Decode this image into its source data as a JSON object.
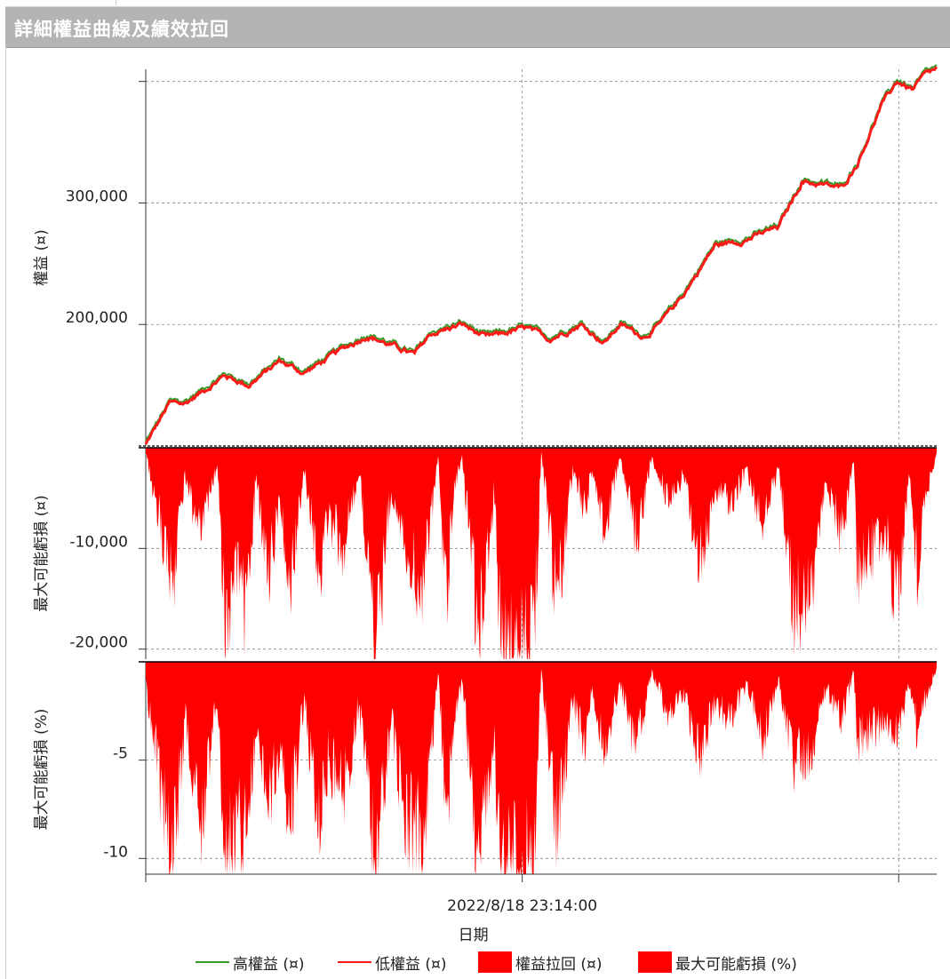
{
  "window": {
    "title": "詳細權益曲線及績效拉回"
  },
  "colors": {
    "high_equity": "#3a9a2a",
    "low_equity": "#ff1a1a",
    "drawdown": "#ff0000",
    "grid": "#999999"
  },
  "chart_data": [
    {
      "type": "line",
      "panel": "equity",
      "ylabel": "權益 (¤)",
      "yticks": [
        200000,
        300000
      ],
      "ytick_labels": [
        "200,000",
        "300,000"
      ],
      "ylim": [
        100000,
        410000
      ],
      "series": [
        {
          "name": "高權益 (¤)",
          "color": "#3a9a2a"
        },
        {
          "name": "低權益 (¤)",
          "color": "#ff1a1a"
        }
      ],
      "x": [
        0,
        0.03,
        0.05,
        0.1,
        0.13,
        0.17,
        0.2,
        0.25,
        0.28,
        0.34,
        0.36,
        0.4,
        0.43,
        0.48,
        0.51,
        0.55,
        0.58,
        0.6,
        0.63,
        0.65,
        0.68,
        0.72,
        0.76,
        0.8,
        0.83,
        0.88,
        0.9,
        0.93,
        0.95,
        0.97,
        0.985,
        1.0
      ],
      "values": [
        101000,
        135000,
        135000,
        158000,
        150000,
        170000,
        160000,
        180000,
        191000,
        175000,
        192000,
        200000,
        189000,
        197000,
        188000,
        200000,
        185000,
        200000,
        190000,
        200000,
        225000,
        265000,
        270000,
        280000,
        318000,
        312000,
        333000,
        380000,
        400000,
        393000,
        405000,
        410000
      ]
    },
    {
      "type": "area",
      "panel": "drawdown_abs",
      "ylabel": "最大可能虧損 (¤)",
      "yticks": [
        -10000,
        -20000
      ],
      "ytick_labels": [
        "-10,000",
        "-20,000"
      ],
      "ylim": [
        -21000,
        0
      ],
      "series": [
        {
          "name": "權益拉回 (¤)",
          "color": "#ff0000"
        }
      ],
      "x": [
        0,
        0.02,
        0.035,
        0.05,
        0.07,
        0.09,
        0.1,
        0.12,
        0.125,
        0.14,
        0.155,
        0.17,
        0.18,
        0.2,
        0.22,
        0.23,
        0.25,
        0.27,
        0.29,
        0.31,
        0.33,
        0.35,
        0.37,
        0.38,
        0.39,
        0.4,
        0.42,
        0.44,
        0.45,
        0.47,
        0.49,
        0.5,
        0.52,
        0.54,
        0.555,
        0.565,
        0.58,
        0.6,
        0.62,
        0.64,
        0.66,
        0.68,
        0.7,
        0.72,
        0.74,
        0.76,
        0.78,
        0.8,
        0.82,
        0.84,
        0.86,
        0.88,
        0.895,
        0.9,
        0.92,
        0.935,
        0.95,
        0.965,
        0.975,
        0.985,
        1.0
      ],
      "values": [
        -500,
        -8000,
        -13500,
        -3000,
        -9000,
        -1500,
        -16500,
        -12000,
        -16000,
        -3000,
        -13000,
        -5000,
        -15000,
        -2000,
        -12000,
        -7000,
        -10000,
        -2000,
        -21000,
        -4000,
        -10000,
        -14000,
        -500,
        -16000,
        -4000,
        -1000,
        -18000,
        -5000,
        -20000,
        -19000,
        -21000,
        -500,
        -16000,
        -2000,
        -6000,
        -2000,
        -8000,
        -1000,
        -9000,
        -1000,
        -5000,
        -3000,
        -12000,
        -4000,
        -6000,
        -2000,
        -8000,
        -2000,
        -16000,
        -15000,
        -3000,
        -9000,
        -1000,
        -12000,
        -10000,
        -8000,
        -16000,
        -2000,
        -12000,
        -5000,
        -500
      ]
    },
    {
      "type": "area",
      "panel": "drawdown_pct",
      "ylabel": "最大可能虧損 (%)",
      "yticks": [
        -5,
        -10
      ],
      "ytick_labels": [
        "-5",
        "-10"
      ],
      "ylim": [
        -10.8,
        0
      ],
      "series": [
        {
          "name": "最大可能虧損 (%)",
          "color": "#ff0000"
        }
      ],
      "x": [
        0,
        0.02,
        0.035,
        0.05,
        0.07,
        0.09,
        0.1,
        0.12,
        0.125,
        0.14,
        0.155,
        0.17,
        0.18,
        0.2,
        0.22,
        0.23,
        0.25,
        0.27,
        0.29,
        0.31,
        0.33,
        0.35,
        0.37,
        0.38,
        0.39,
        0.4,
        0.42,
        0.44,
        0.45,
        0.47,
        0.49,
        0.5,
        0.52,
        0.54,
        0.555,
        0.565,
        0.58,
        0.6,
        0.62,
        0.64,
        0.66,
        0.68,
        0.7,
        0.72,
        0.74,
        0.76,
        0.78,
        0.8,
        0.82,
        0.84,
        0.86,
        0.88,
        0.895,
        0.9,
        0.92,
        0.935,
        0.95,
        0.965,
        0.975,
        0.985,
        1.0
      ],
      "values": [
        -1,
        -7,
        -9.5,
        -3,
        -8,
        -2,
        -10.5,
        -8,
        -9.5,
        -3,
        -8,
        -4,
        -9,
        -2,
        -8,
        -5,
        -7,
        -2,
        -10.8,
        -3,
        -8,
        -9,
        -0.5,
        -8.5,
        -3,
        -1,
        -10,
        -4,
        -10.3,
        -9.5,
        -10.2,
        -0.5,
        -8.5,
        -2,
        -4,
        -1.5,
        -4.5,
        -1,
        -4.5,
        -0.5,
        -2.5,
        -1.5,
        -5,
        -2,
        -3,
        -1,
        -4,
        -1,
        -5,
        -4.5,
        -1.5,
        -3,
        -0.5,
        -4,
        -3.5,
        -3,
        -4,
        -1,
        -3.5,
        -2,
        -0.3
      ]
    }
  ],
  "x_axis": {
    "label": "日期",
    "tick_labels": [
      "2022/8/18 23:14:00"
    ]
  },
  "legend": [
    {
      "label": "高權益 (¤)",
      "kind": "line",
      "color": "#3a9a2a"
    },
    {
      "label": "低權益 (¤)",
      "kind": "line",
      "color": "#ff1a1a"
    },
    {
      "label": "權益拉回 (¤)",
      "kind": "box",
      "color": "#ff0000"
    },
    {
      "label": "最大可能虧損 (%)",
      "kind": "box",
      "color": "#ff0000"
    }
  ]
}
